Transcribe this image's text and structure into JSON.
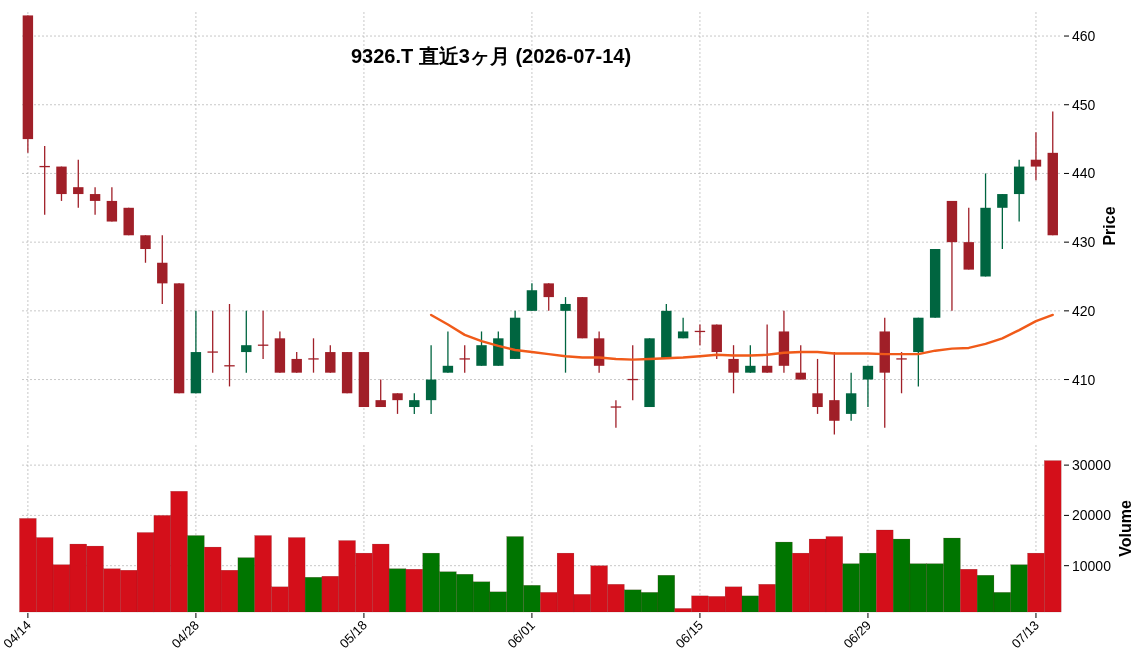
{
  "chart_data": [
    {
      "type": "candlestick",
      "title": "9326.T  直近3ヶ月  (2026-07-14)",
      "ylabel": "Price",
      "categories": [
        null,
        null,
        null,
        null,
        null,
        null,
        null,
        null,
        null,
        null,
        null,
        null,
        null,
        null,
        null,
        null,
        null,
        null,
        null,
        null,
        null,
        null,
        null,
        null,
        null,
        null,
        null,
        null,
        null,
        null,
        null,
        null,
        null,
        null,
        null,
        null,
        null,
        null,
        null,
        null,
        null,
        null,
        null,
        null,
        null,
        null,
        null,
        null,
        null,
        null,
        null,
        null,
        null,
        null,
        null,
        null,
        null,
        null,
        null,
        null,
        null,
        null
      ],
      "ohlc": [
        [
          463,
          463,
          443,
          445
        ],
        [
          441,
          444,
          434,
          441
        ],
        [
          441,
          441,
          436,
          437
        ],
        [
          438,
          442,
          435,
          437
        ],
        [
          437,
          438,
          434,
          436
        ],
        [
          436,
          438,
          433,
          433
        ],
        [
          435,
          435,
          431,
          431
        ],
        [
          431,
          431,
          427,
          429
        ],
        [
          427,
          431,
          421,
          424
        ],
        [
          424,
          424,
          408,
          408
        ],
        [
          408,
          420,
          408,
          414
        ],
        [
          414,
          420,
          411,
          414
        ],
        [
          412,
          421,
          409,
          412
        ],
        [
          414,
          420,
          411,
          415
        ],
        [
          415,
          420,
          413,
          415
        ],
        [
          416,
          417,
          411,
          411
        ],
        [
          413,
          414,
          411,
          411
        ],
        [
          413,
          416,
          411,
          413
        ],
        [
          414,
          415,
          411,
          411
        ],
        [
          414,
          414,
          408,
          408
        ],
        [
          414,
          414,
          406,
          406
        ],
        [
          407,
          410,
          406,
          406
        ],
        [
          408,
          408,
          405,
          407
        ],
        [
          406,
          408,
          405,
          407
        ],
        [
          407,
          415,
          405,
          410
        ],
        [
          411,
          417,
          411,
          412
        ],
        [
          413,
          415,
          411,
          413
        ],
        [
          412,
          417,
          412,
          415
        ],
        [
          412,
          417,
          412,
          416
        ],
        [
          413,
          420,
          413,
          419
        ],
        [
          420,
          424,
          420,
          423
        ],
        [
          424,
          424,
          420,
          422
        ],
        [
          420,
          422,
          411,
          421
        ],
        [
          422,
          422,
          416,
          416
        ],
        [
          416,
          417,
          411,
          412
        ],
        [
          406,
          407,
          403,
          406
        ],
        [
          410,
          415,
          407,
          410
        ],
        [
          406,
          416,
          406,
          416
        ],
        [
          413,
          421,
          413,
          420
        ],
        [
          416,
          419,
          416,
          417
        ],
        [
          417,
          418,
          415,
          417
        ],
        [
          418,
          418,
          413,
          414
        ],
        [
          413,
          415,
          408,
          411
        ],
        [
          411,
          415,
          411,
          412
        ],
        [
          412,
          418,
          411,
          411
        ],
        [
          417,
          420,
          411,
          412
        ],
        [
          411,
          415,
          410,
          410
        ],
        [
          408,
          413,
          405,
          406
        ],
        [
          407,
          414,
          402,
          404
        ],
        [
          405,
          411,
          404,
          408
        ],
        [
          410,
          412,
          406,
          412
        ],
        [
          417,
          419,
          403,
          411
        ],
        [
          413,
          414,
          408,
          413
        ],
        [
          414,
          419,
          409,
          419
        ],
        [
          419,
          429,
          419,
          429
        ],
        [
          436,
          436,
          420,
          430
        ],
        [
          430,
          435,
          426,
          426
        ],
        [
          425,
          440,
          425,
          435
        ],
        [
          435,
          437,
          429,
          437
        ],
        [
          437,
          442,
          433,
          441
        ],
        [
          442,
          446,
          439,
          441
        ],
        [
          443,
          449,
          431,
          431
        ]
      ],
      "colors": [
        "#a01f28",
        "#a01f28",
        "#a01f28",
        "#a01f28",
        "#a01f28",
        "#a01f28",
        "#a01f28",
        "#a01f28",
        "#a01f28",
        "#a01f28",
        "#006540",
        "#a01f28",
        "#a01f28",
        "#006540",
        "#a01f28",
        "#a01f28",
        "#a01f28",
        "#a01f28",
        "#a01f28",
        "#a01f28",
        "#a01f28",
        "#a01f28",
        "#a01f28",
        "#006540",
        "#006540",
        "#006540",
        "#a01f28",
        "#006540",
        "#006540",
        "#006540",
        "#006540",
        "#a01f28",
        "#006540",
        "#a01f28",
        "#a01f28",
        "#a01f28",
        "#a01f28",
        "#006540",
        "#006540",
        "#006540",
        "#a01f28",
        "#a01f28",
        "#a01f28",
        "#006540",
        "#a01f28",
        "#a01f28",
        "#a01f28",
        "#a01f28",
        "#a01f28",
        "#006540",
        "#006540",
        "#a01f28",
        "#a01f28",
        "#006540",
        "#006540",
        "#a01f28",
        "#a01f28",
        "#006540",
        "#006540",
        "#006540",
        "#a01f28",
        "#a01f28"
      ],
      "series": [
        {
          "type": "line",
          "color": "#f05a19",
          "values": [
            null,
            null,
            null,
            null,
            null,
            null,
            null,
            null,
            null,
            null,
            null,
            null,
            null,
            null,
            null,
            null,
            null,
            null,
            null,
            null,
            null,
            null,
            null,
            null,
            419.4,
            418,
            416.5,
            415.6,
            414.9,
            414.3,
            414,
            413.7,
            413.4,
            413.2,
            413.2,
            413,
            412.9,
            413,
            413.1,
            413.2,
            413.4,
            413.6,
            413.5,
            413.5,
            413.6,
            413.9,
            414,
            414,
            413.8,
            413.8,
            413.8,
            413.7,
            413.7,
            413.7,
            414.2,
            414.5,
            414.6,
            415.2,
            416,
            417.2,
            418.5,
            419.4
          ]
        }
      ],
      "ylim": [
        401.2,
        463.5
      ],
      "yticks": [
        410,
        420,
        430,
        440,
        450,
        460
      ],
      "grid": true,
      "tick_labels": "y"
    },
    {
      "type": "bar",
      "ylabel": "Volume",
      "categories": [
        "04/14",
        null,
        null,
        null,
        null,
        null,
        null,
        null,
        null,
        null,
        "04/28",
        null,
        null,
        null,
        null,
        null,
        null,
        null,
        null,
        null,
        "05/18",
        null,
        null,
        null,
        null,
        null,
        null,
        null,
        null,
        null,
        "06/01",
        null,
        null,
        null,
        null,
        null,
        null,
        null,
        null,
        null,
        "06/15",
        null,
        null,
        null,
        null,
        null,
        null,
        null,
        null,
        null,
        "06/29",
        null,
        null,
        null,
        null,
        null,
        null,
        null,
        null,
        null,
        "07/13",
        null
      ],
      "values": [
        19400,
        15600,
        10200,
        14300,
        13900,
        9400,
        9100,
        16600,
        20000,
        24800,
        16000,
        13700,
        9100,
        11600,
        16000,
        5800,
        15600,
        7700,
        7900,
        15000,
        12500,
        14300,
        9400,
        9300,
        12500,
        8800,
        8300,
        6800,
        4800,
        15800,
        6100,
        4700,
        12500,
        4300,
        10000,
        6300,
        5200,
        4700,
        8100,
        1500,
        4000,
        3900,
        5800,
        4000,
        6300,
        14700,
        12500,
        15300,
        15800,
        10400,
        12500,
        17100,
        15300,
        10400,
        10400,
        15500,
        9300,
        8100,
        4700,
        10200,
        12500,
        30900
      ],
      "colors": [
        "#d40f1a",
        "#d40f1a",
        "#d40f1a",
        "#d40f1a",
        "#d40f1a",
        "#d40f1a",
        "#d40f1a",
        "#d40f1a",
        "#d40f1a",
        "#d40f1a",
        "#007500",
        "#d40f1a",
        "#d40f1a",
        "#007500",
        "#d40f1a",
        "#d40f1a",
        "#d40f1a",
        "#007500",
        "#d40f1a",
        "#d40f1a",
        "#d40f1a",
        "#d40f1a",
        "#007500",
        "#d40f1a",
        "#007500",
        "#007500",
        "#007500",
        "#007500",
        "#007500",
        "#007500",
        "#007500",
        "#d40f1a",
        "#d40f1a",
        "#d40f1a",
        "#d40f1a",
        "#d40f1a",
        "#007500",
        "#007500",
        "#007500",
        "#d40f1a",
        "#d40f1a",
        "#d40f1a",
        "#d40f1a",
        "#007500",
        "#d40f1a",
        "#007500",
        "#d40f1a",
        "#d40f1a",
        "#d40f1a",
        "#007500",
        "#007500",
        "#d40f1a",
        "#007500",
        "#007500",
        "#007500",
        "#007500",
        "#d40f1a",
        "#007500",
        "#007500",
        "#007500",
        "#d40f1a",
        "#d40f1a"
      ],
      "ylim": [
        790,
        34000
      ],
      "yticks": [
        10000,
        20000,
        30000
      ],
      "grid": true
    }
  ]
}
